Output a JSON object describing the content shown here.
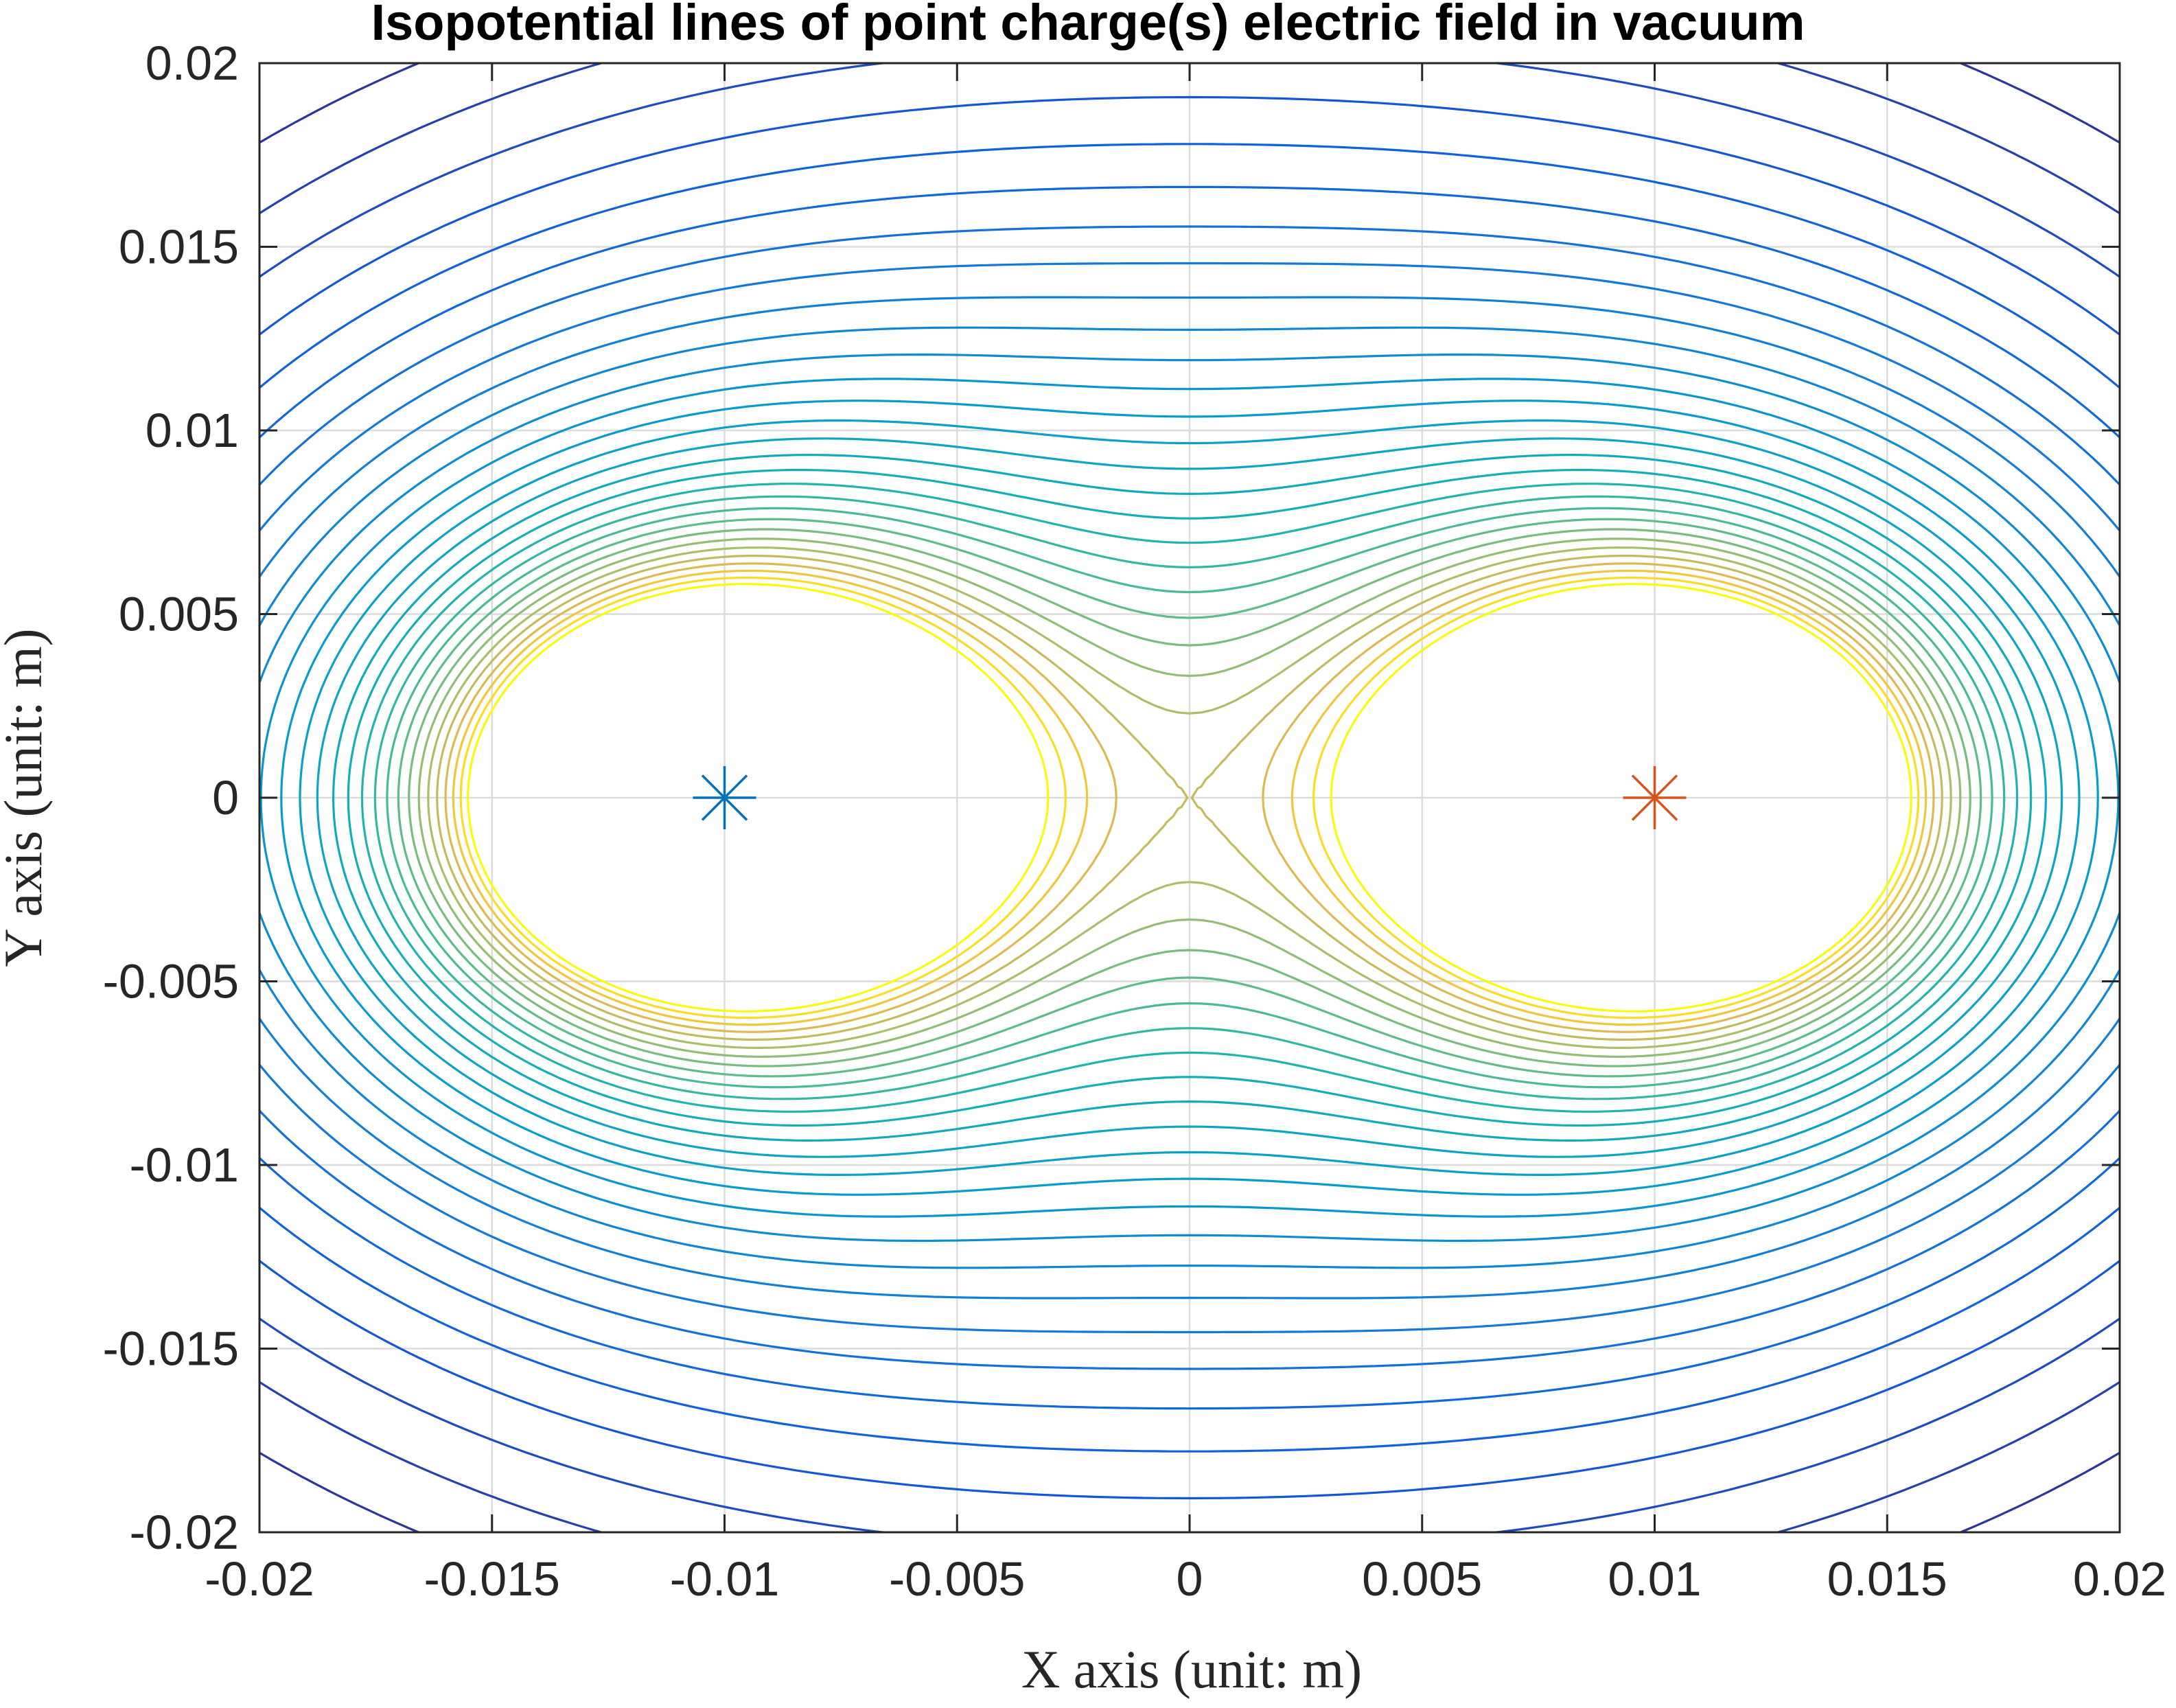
{
  "chart_data": {
    "type": "contour",
    "title": "Isopotential lines of point charge(s) electric field in vacuum",
    "xlabel": "X axis (unit: m)",
    "ylabel": "Y axis (unit: m)",
    "xlim": [
      -0.02,
      0.02
    ],
    "ylim": [
      -0.02,
      0.02
    ],
    "xticks": [
      -0.02,
      -0.015,
      -0.01,
      -0.005,
      0,
      0.005,
      0.01,
      0.015,
      0.02
    ],
    "yticks": [
      -0.02,
      -0.015,
      -0.01,
      -0.005,
      0,
      0.005,
      0.01,
      0.015,
      0.02
    ],
    "xtick_labels": [
      "-0.02",
      "-0.015",
      "-0.01",
      "-0.005",
      "0",
      "0.005",
      "0.01",
      "0.015",
      "0.02"
    ],
    "ytick_labels": [
      "-0.02",
      "-0.015",
      "-0.01",
      "-0.005",
      "0",
      "0.005",
      "0.01",
      "0.015",
      "0.02"
    ],
    "grid": true,
    "colormap": "parula",
    "charges": [
      {
        "x": -0.01,
        "y": 0,
        "marker": "asterisk",
        "color": "#0072BD"
      },
      {
        "x": 0.01,
        "y": 0,
        "marker": "asterisk",
        "color": "#D95319"
      }
    ],
    "contour_levels_relative": [
      0.2,
      0.22,
      0.24,
      0.26,
      0.28,
      0.3,
      0.32,
      0.34,
      0.36,
      0.38,
      0.4,
      0.42,
      0.44,
      0.46,
      0.48,
      0.5,
      0.52,
      0.54,
      0.56,
      0.58,
      0.6,
      0.62,
      0.64,
      0.66,
      0.68,
      0.7,
      0.72,
      0.74,
      0.76,
      0.78
    ]
  }
}
